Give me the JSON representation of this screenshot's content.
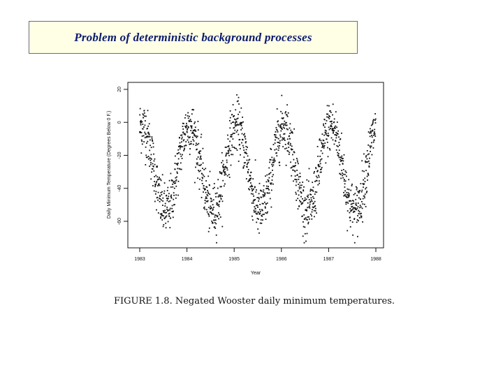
{
  "slide": {
    "title": "Problem of deterministic background processes",
    "colors": {
      "title_bg": "#ffffe6",
      "title_text": "#0b1b6e",
      "title_border": "#6d6d6d"
    }
  },
  "figure": {
    "caption": "FIGURE 1.8. Negated Wooster daily minimum temperatures."
  },
  "chart_data": {
    "type": "scatter",
    "title": "",
    "xlabel": "Year",
    "ylabel": "Daily Minimum Temperature (Degrees Below 0 F.)",
    "x_ticks": [
      1983,
      1984,
      1985,
      1986,
      1987,
      1988
    ],
    "y_ticks": [
      20,
      0,
      -20,
      -40,
      -60
    ],
    "y_tick_labels": [
      "20",
      "0",
      "-20",
      "-40",
      "-60"
    ],
    "xlim": [
      1983,
      1988
    ],
    "ylim": [
      -75,
      22
    ],
    "grid": false,
    "series": [
      {
        "pattern": "annual seasonal cycle, negated daily minimum temperature",
        "mean": -28,
        "amplitude": 26,
        "peak_fraction_of_year": 0.05,
        "noise_sd": 8,
        "points_per_year": 300,
        "year_start": 1983,
        "year_end": 1988,
        "winter_peaks": [
          {
            "year": 1983.05,
            "value": -4
          },
          {
            "year": 1984.05,
            "value": 15
          },
          {
            "year": 1985.05,
            "value": 19
          },
          {
            "year": 1986.05,
            "value": 1
          },
          {
            "year": 1987.05,
            "value": -2
          },
          {
            "year": 1988.0,
            "value": -12
          }
        ],
        "summer_troughs": [
          {
            "year": 1983.55,
            "value": -66
          },
          {
            "year": 1984.55,
            "value": -66
          },
          {
            "year": 1985.55,
            "value": -65
          },
          {
            "year": 1986.55,
            "value": -70
          },
          {
            "year": 1987.55,
            "value": -69
          }
        ]
      }
    ]
  }
}
